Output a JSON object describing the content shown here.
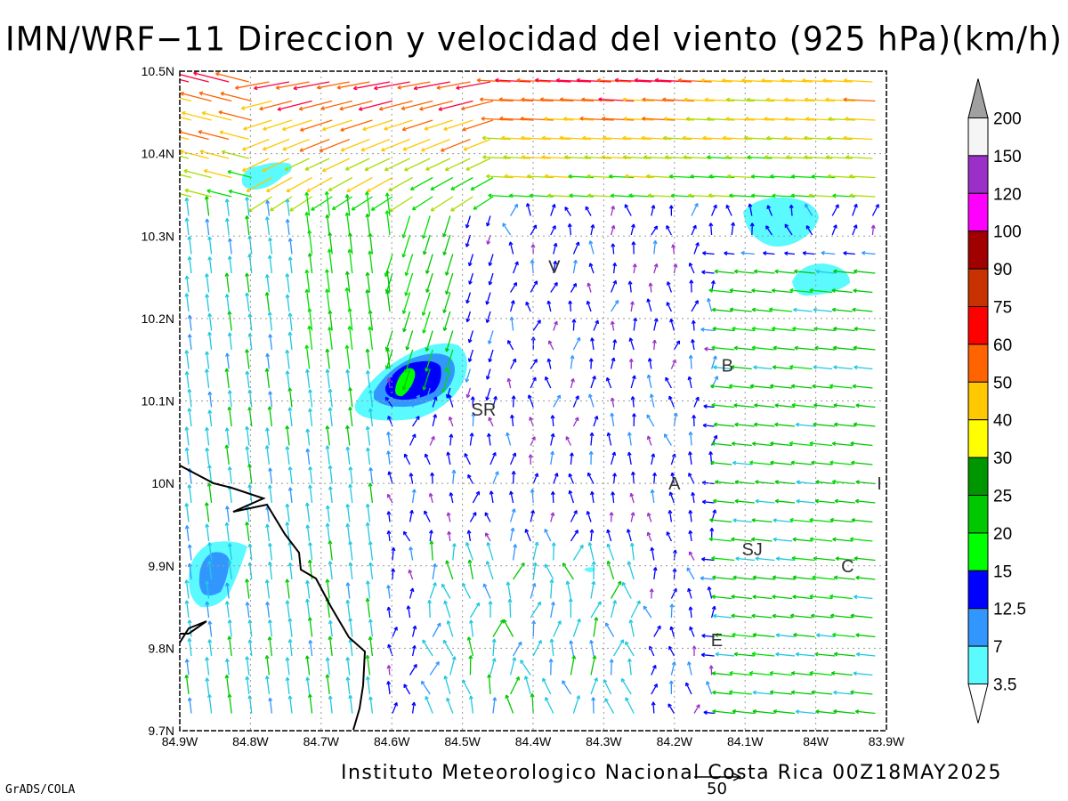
{
  "title": "IMN/WRF−11 Direccion y velocidad del viento (925 hPa)(km/h)",
  "footer": "Instituto Meteorologico Nacional Costa Rica  00Z18MAY2025",
  "software_label": "GrADS/COLA",
  "reference_vector": {
    "label": "50",
    "value": 50,
    "units": "km/h"
  },
  "map": {
    "x_axis": {
      "ticks": [
        "84.9W",
        "84.8W",
        "84.7W",
        "84.6W",
        "84.5W",
        "84.4W",
        "84.3W",
        "84.2W",
        "84.1W",
        "84W",
        "83.9W"
      ],
      "lon_range": [
        -84.9,
        -83.9
      ]
    },
    "y_axis": {
      "ticks": [
        "10.5N",
        "10.4N",
        "10.3N",
        "10.2N",
        "10.1N",
        "10N",
        "9.9N",
        "9.8N",
        "9.7N"
      ],
      "lat_range": [
        9.7,
        10.5
      ]
    },
    "grid": true,
    "places": [
      {
        "label": "V",
        "lon": -84.37,
        "lat": 10.263
      },
      {
        "label": "B",
        "lon": -84.125,
        "lat": 10.143
      },
      {
        "label": "SR",
        "lon": -84.47,
        "lat": 10.09
      },
      {
        "label": "A",
        "lon": -84.2,
        "lat": 10.0
      },
      {
        "label": "I",
        "lon": -83.91,
        "lat": 10.0
      },
      {
        "label": "SJ",
        "lon": -84.09,
        "lat": 9.92
      },
      {
        "label": "C",
        "lon": -83.955,
        "lat": 9.9
      },
      {
        "label": "E",
        "lon": -84.14,
        "lat": 9.81
      }
    ]
  },
  "colorbar": {
    "levels": [
      "200",
      "150",
      "120",
      "100",
      "90",
      "75",
      "60",
      "50",
      "40",
      "30",
      "25",
      "20",
      "15",
      "12.5",
      "7",
      "3.5"
    ],
    "colors": [
      "#a0a0a0",
      "#f5f5f5",
      "#9b30c8",
      "#ff00ff",
      "#a00000",
      "#c83200",
      "#ff0000",
      "#ff6400",
      "#ffc800",
      "#ffff00",
      "#009600",
      "#00c800",
      "#00ff00",
      "#0000ff",
      "#3296ff",
      "#5afaff"
    ],
    "bottom_color": "#ffffff"
  },
  "shaded_regions": [
    {
      "name": "speed-blob-north",
      "level": "3.5"
    },
    {
      "name": "speed-blob-northeast",
      "level": "3.5"
    },
    {
      "name": "speed-blob-east",
      "level": "3.5"
    },
    {
      "name": "speed-blob-central",
      "level": "15"
    },
    {
      "name": "speed-blob-southwest",
      "level": "7"
    }
  ]
}
